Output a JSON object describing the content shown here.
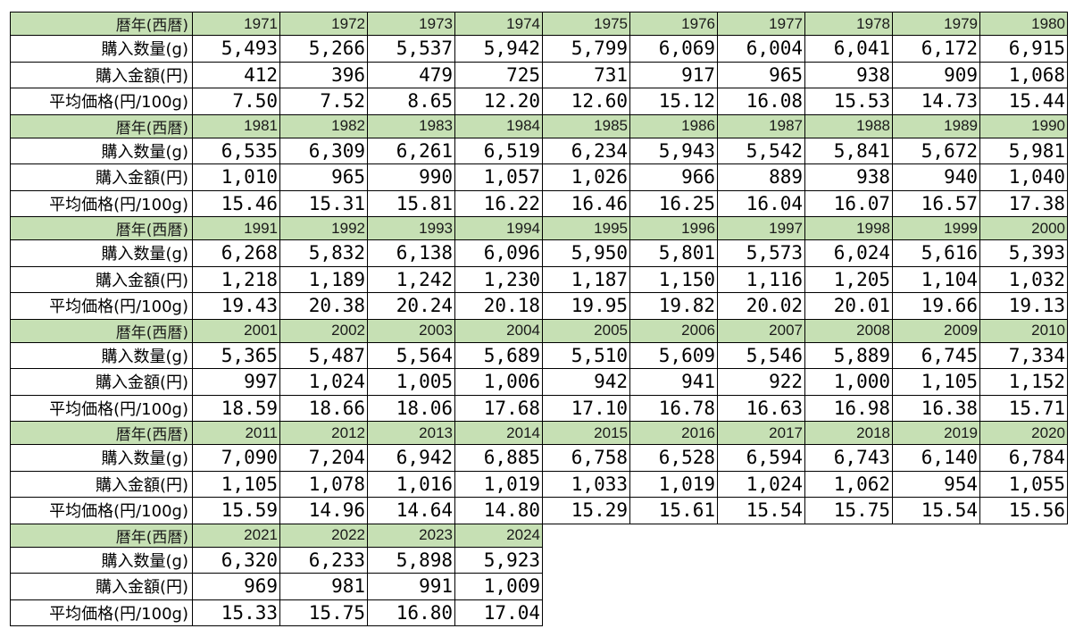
{
  "labels": {
    "year": "暦年(西暦)",
    "quantity": "購入数量(g)",
    "amount": "購入金額(円)",
    "price": "平均価格(円/100g)"
  },
  "blocks": [
    {
      "years": [
        "1971",
        "1972",
        "1973",
        "1974",
        "1975",
        "1976",
        "1977",
        "1978",
        "1979",
        "1980"
      ],
      "quantity": [
        "5,493",
        "5,266",
        "5,537",
        "5,942",
        "5,799",
        "6,069",
        "6,004",
        "6,041",
        "6,172",
        "6,915"
      ],
      "amount": [
        "412",
        "396",
        "479",
        "725",
        "731",
        "917",
        "965",
        "938",
        "909",
        "1,068"
      ],
      "price": [
        "7.50",
        "7.52",
        "8.65",
        "12.20",
        "12.60",
        "15.12",
        "16.08",
        "15.53",
        "14.73",
        "15.44"
      ]
    },
    {
      "years": [
        "1981",
        "1982",
        "1983",
        "1984",
        "1985",
        "1986",
        "1987",
        "1988",
        "1989",
        "1990"
      ],
      "quantity": [
        "6,535",
        "6,309",
        "6,261",
        "6,519",
        "6,234",
        "5,943",
        "5,542",
        "5,841",
        "5,672",
        "5,981"
      ],
      "amount": [
        "1,010",
        "965",
        "990",
        "1,057",
        "1,026",
        "966",
        "889",
        "938",
        "940",
        "1,040"
      ],
      "price": [
        "15.46",
        "15.31",
        "15.81",
        "16.22",
        "16.46",
        "16.25",
        "16.04",
        "16.07",
        "16.57",
        "17.38"
      ]
    },
    {
      "years": [
        "1991",
        "1992",
        "1993",
        "1994",
        "1995",
        "1996",
        "1997",
        "1998",
        "1999",
        "2000"
      ],
      "quantity": [
        "6,268",
        "5,832",
        "6,138",
        "6,096",
        "5,950",
        "5,801",
        "5,573",
        "6,024",
        "5,616",
        "5,393"
      ],
      "amount": [
        "1,218",
        "1,189",
        "1,242",
        "1,230",
        "1,187",
        "1,150",
        "1,116",
        "1,205",
        "1,104",
        "1,032"
      ],
      "price": [
        "19.43",
        "20.38",
        "20.24",
        "20.18",
        "19.95",
        "19.82",
        "20.02",
        "20.01",
        "19.66",
        "19.13"
      ]
    },
    {
      "years": [
        "2001",
        "2002",
        "2003",
        "2004",
        "2005",
        "2006",
        "2007",
        "2008",
        "2009",
        "2010"
      ],
      "quantity": [
        "5,365",
        "5,487",
        "5,564",
        "5,689",
        "5,510",
        "5,609",
        "5,546",
        "5,889",
        "6,745",
        "7,334"
      ],
      "amount": [
        "997",
        "1,024",
        "1,005",
        "1,006",
        "942",
        "941",
        "922",
        "1,000",
        "1,105",
        "1,152"
      ],
      "price": [
        "18.59",
        "18.66",
        "18.06",
        "17.68",
        "17.10",
        "16.78",
        "16.63",
        "16.98",
        "16.38",
        "15.71"
      ]
    },
    {
      "years": [
        "2011",
        "2012",
        "2013",
        "2014",
        "2015",
        "2016",
        "2017",
        "2018",
        "2019",
        "2020"
      ],
      "quantity": [
        "7,090",
        "7,204",
        "6,942",
        "6,885",
        "6,758",
        "6,528",
        "6,594",
        "6,743",
        "6,140",
        "6,784"
      ],
      "amount": [
        "1,105",
        "1,078",
        "1,016",
        "1,019",
        "1,033",
        "1,019",
        "1,024",
        "1,062",
        "954",
        "1,055"
      ],
      "price": [
        "15.59",
        "14.96",
        "14.64",
        "14.80",
        "15.29",
        "15.61",
        "15.54",
        "15.75",
        "15.54",
        "15.56"
      ]
    },
    {
      "years": [
        "2021",
        "2022",
        "2023",
        "2024"
      ],
      "quantity": [
        "6,320",
        "6,233",
        "5,898",
        "5,923"
      ],
      "amount": [
        "969",
        "981",
        "991",
        "1,009"
      ],
      "price": [
        "15.33",
        "15.75",
        "16.80",
        "17.04"
      ]
    }
  ]
}
